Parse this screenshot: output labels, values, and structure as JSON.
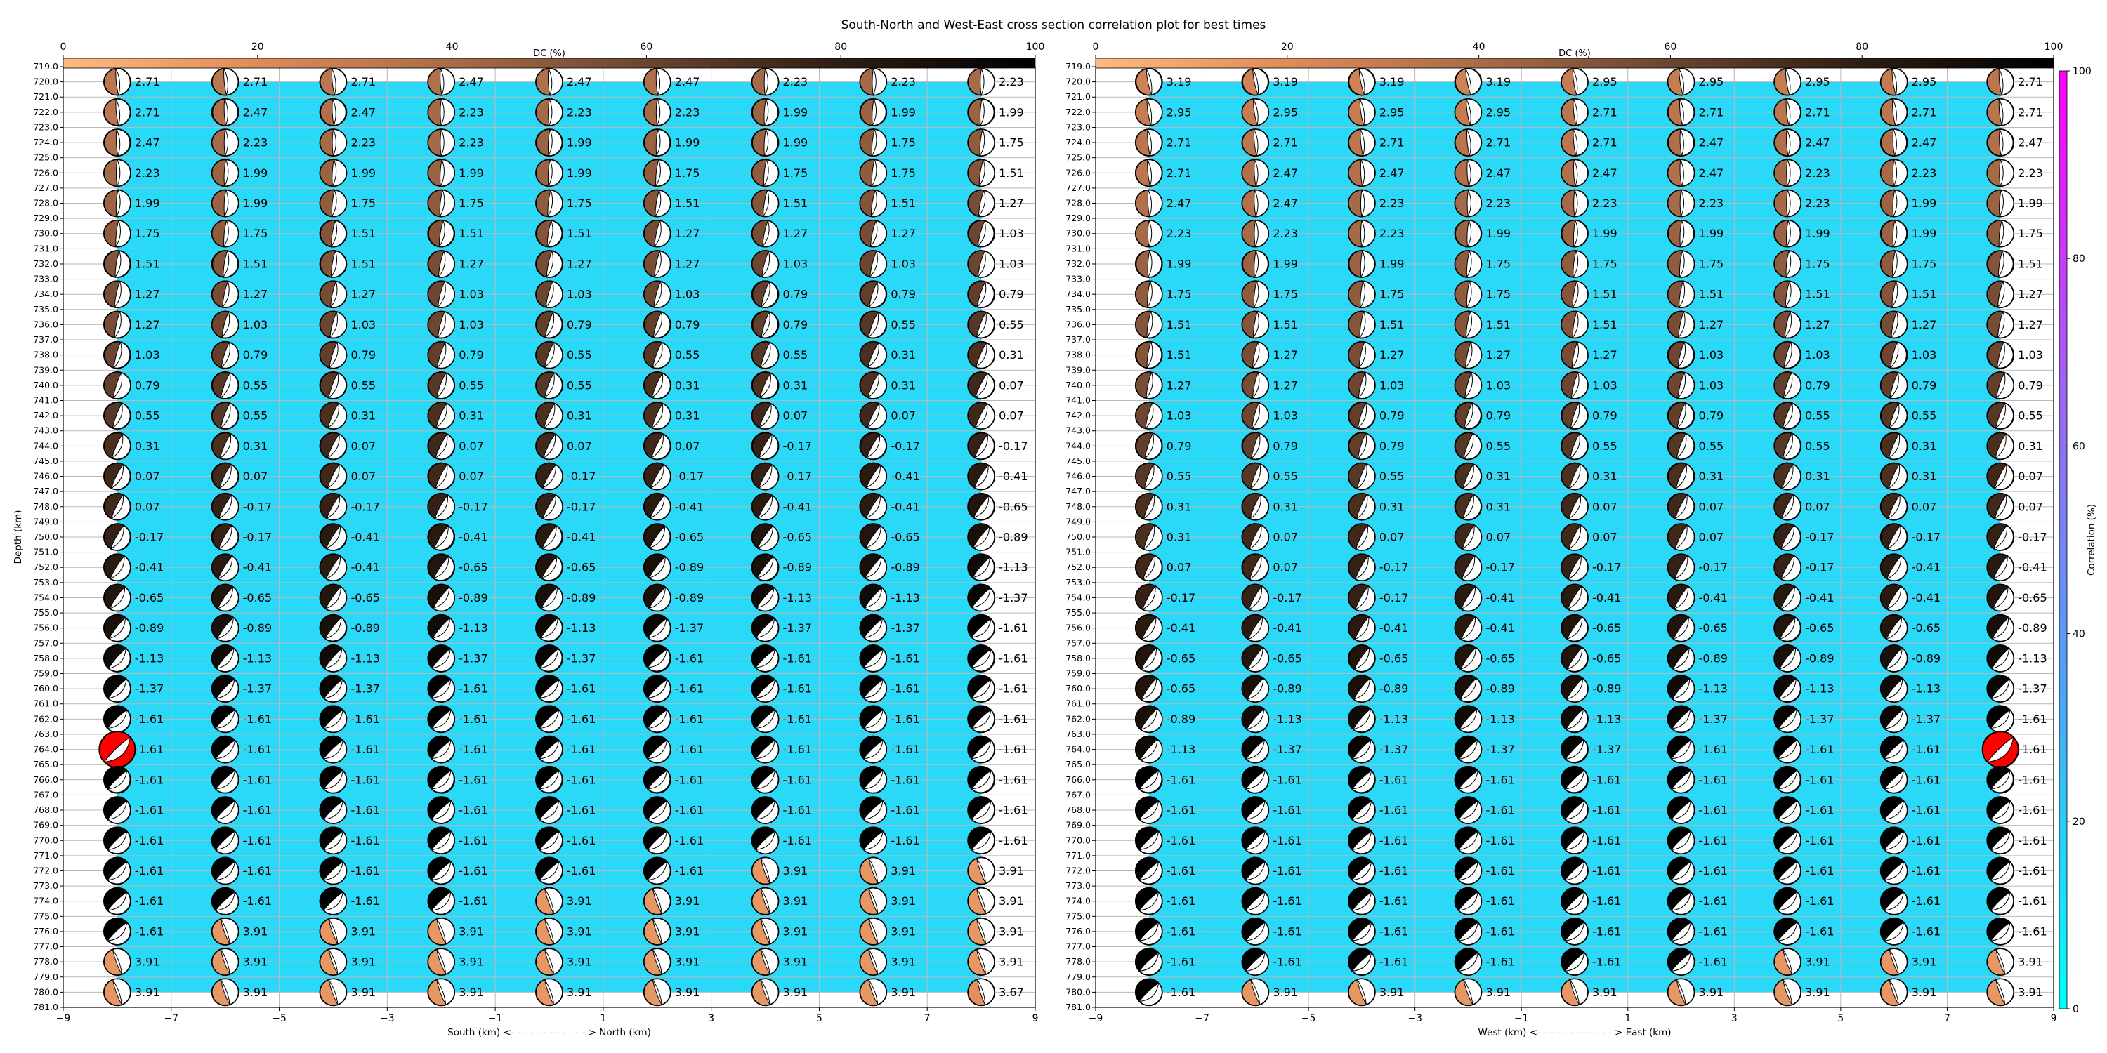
{
  "title": "South-North and West-East cross section correlation plot for best times",
  "colors": {
    "background_fill": "#2ad8f8",
    "grid": "#b9b9b9",
    "best_fit": "#ff0000",
    "dc_colormap": [
      "#fdba82",
      "#e08b5a",
      "#a86c48",
      "#6b4530",
      "#2e1d12",
      "#000000"
    ],
    "corr_colormap": [
      "#00ffff",
      "#4ba6f5",
      "#9f63f2",
      "#ff00ff"
    ]
  },
  "dc_colorbar": {
    "label": "DC (%)",
    "ticks": [
      0,
      20,
      40,
      60,
      80,
      100
    ]
  },
  "corr_colorbar": {
    "label": "Correlation (%)",
    "ticks": [
      0,
      20,
      40,
      60,
      80,
      100
    ]
  },
  "chart_data": [
    {
      "type": "scatter",
      "panel": "left",
      "xlabel": "South (km) <- - - - - - - - - - - - > North (km)",
      "ylabel": "Depth (km)",
      "xlim": [
        -9,
        9
      ],
      "ylim": [
        719,
        781
      ],
      "y_inverted": true,
      "xticks": [
        "−9",
        "−7",
        "−5",
        "−3",
        "−1",
        "1",
        "3",
        "5",
        "7",
        "9"
      ],
      "yticks": [
        719,
        720,
        721,
        722,
        723,
        724,
        725,
        726,
        727,
        728,
        729,
        730,
        731,
        732,
        733,
        734,
        735,
        736,
        737,
        738,
        739,
        740,
        741,
        742,
        743,
        744,
        745,
        746,
        747,
        748,
        749,
        750,
        751,
        752,
        753,
        754,
        755,
        756,
        757,
        758,
        759,
        760,
        761,
        762,
        763,
        764,
        765,
        766,
        767,
        768,
        769,
        770,
        771,
        772,
        773,
        774,
        775,
        776,
        777,
        778,
        779,
        780,
        781
      ],
      "x": [
        -8,
        -6,
        -4,
        -2,
        0,
        2,
        4,
        6,
        8
      ],
      "depths": [
        720,
        722,
        724,
        726,
        728,
        730,
        732,
        734,
        736,
        738,
        740,
        742,
        744,
        746,
        748,
        750,
        752,
        754,
        756,
        758,
        760,
        762,
        764,
        766,
        768,
        770,
        772,
        774,
        776,
        778,
        780
      ],
      "best_fit": {
        "x": -8,
        "depth": 764
      },
      "values": [
        [
          "2.71",
          "2.71",
          "2.71",
          "2.47",
          "2.47",
          "2.47",
          "2.23",
          "2.23",
          "2.23"
        ],
        [
          "2.71",
          "2.47",
          "2.47",
          "2.23",
          "2.23",
          "2.23",
          "1.99",
          "1.99",
          "1.99"
        ],
        [
          "2.47",
          "2.23",
          "2.23",
          "2.23",
          "1.99",
          "1.99",
          "1.99",
          "1.75",
          "1.75"
        ],
        [
          "2.23",
          "1.99",
          "1.99",
          "1.99",
          "1.99",
          "1.75",
          "1.75",
          "1.75",
          "1.51"
        ],
        [
          "1.99",
          "1.99",
          "1.75",
          "1.75",
          "1.75",
          "1.51",
          "1.51",
          "1.51",
          "1.27"
        ],
        [
          "1.75",
          "1.75",
          "1.51",
          "1.51",
          "1.51",
          "1.27",
          "1.27",
          "1.27",
          "1.03"
        ],
        [
          "1.51",
          "1.51",
          "1.51",
          "1.27",
          "1.27",
          "1.27",
          "1.03",
          "1.03",
          "1.03"
        ],
        [
          "1.27",
          "1.27",
          "1.27",
          "1.03",
          "1.03",
          "1.03",
          "0.79",
          "0.79",
          "0.79"
        ],
        [
          "1.27",
          "1.03",
          "1.03",
          "1.03",
          "0.79",
          "0.79",
          "0.79",
          "0.55",
          "0.55"
        ],
        [
          "1.03",
          "0.79",
          "0.79",
          "0.79",
          "0.55",
          "0.55",
          "0.55",
          "0.31",
          "0.31"
        ],
        [
          "0.79",
          "0.55",
          "0.55",
          "0.55",
          "0.55",
          "0.31",
          "0.31",
          "0.31",
          "0.07"
        ],
        [
          "0.55",
          "0.55",
          "0.31",
          "0.31",
          "0.31",
          "0.31",
          "0.07",
          "0.07",
          "0.07"
        ],
        [
          "0.31",
          "0.31",
          "0.07",
          "0.07",
          "0.07",
          "0.07",
          "-0.17",
          "-0.17",
          "-0.17"
        ],
        [
          "0.07",
          "0.07",
          "0.07",
          "0.07",
          "-0.17",
          "-0.17",
          "-0.17",
          "-0.41",
          "-0.41"
        ],
        [
          "0.07",
          "-0.17",
          "-0.17",
          "-0.17",
          "-0.17",
          "-0.41",
          "-0.41",
          "-0.41",
          "-0.65"
        ],
        [
          "-0.17",
          "-0.17",
          "-0.41",
          "-0.41",
          "-0.41",
          "-0.65",
          "-0.65",
          "-0.65",
          "-0.89"
        ],
        [
          "-0.41",
          "-0.41",
          "-0.41",
          "-0.65",
          "-0.65",
          "-0.89",
          "-0.89",
          "-0.89",
          "-1.13"
        ],
        [
          "-0.65",
          "-0.65",
          "-0.65",
          "-0.89",
          "-0.89",
          "-0.89",
          "-1.13",
          "-1.13",
          "-1.37"
        ],
        [
          "-0.89",
          "-0.89",
          "-0.89",
          "-1.13",
          "-1.13",
          "-1.37",
          "-1.37",
          "-1.37",
          "-1.61"
        ],
        [
          "-1.13",
          "-1.13",
          "-1.13",
          "-1.37",
          "-1.37",
          "-1.61",
          "-1.61",
          "-1.61",
          "-1.61"
        ],
        [
          "-1.37",
          "-1.37",
          "-1.37",
          "-1.61",
          "-1.61",
          "-1.61",
          "-1.61",
          "-1.61",
          "-1.61"
        ],
        [
          "-1.61",
          "-1.61",
          "-1.61",
          "-1.61",
          "-1.61",
          "-1.61",
          "-1.61",
          "-1.61",
          "-1.61"
        ],
        [
          "-1.61",
          "-1.61",
          "-1.61",
          "-1.61",
          "-1.61",
          "-1.61",
          "-1.61",
          "-1.61",
          "-1.61"
        ],
        [
          "-1.61",
          "-1.61",
          "-1.61",
          "-1.61",
          "-1.61",
          "-1.61",
          "-1.61",
          "-1.61",
          "-1.61"
        ],
        [
          "-1.61",
          "-1.61",
          "-1.61",
          "-1.61",
          "-1.61",
          "-1.61",
          "-1.61",
          "-1.61",
          "-1.61"
        ],
        [
          "-1.61",
          "-1.61",
          "-1.61",
          "-1.61",
          "-1.61",
          "-1.61",
          "-1.61",
          "-1.61",
          "-1.61"
        ],
        [
          "-1.61",
          "-1.61",
          "-1.61",
          "-1.61",
          "-1.61",
          "-1.61",
          "3.91",
          "3.91",
          "3.91"
        ],
        [
          "-1.61",
          "-1.61",
          "-1.61",
          "-1.61",
          "3.91",
          "3.91",
          "3.91",
          "3.91",
          "3.91"
        ],
        [
          "-1.61",
          "3.91",
          "3.91",
          "3.91",
          "3.91",
          "3.91",
          "3.91",
          "3.91",
          "3.91"
        ],
        [
          "3.91",
          "3.91",
          "3.91",
          "3.91",
          "3.91",
          "3.91",
          "3.91",
          "3.91",
          "3.91"
        ],
        [
          "3.91",
          "3.91",
          "3.91",
          "3.91",
          "3.91",
          "3.91",
          "3.91",
          "3.91",
          "3.67"
        ]
      ]
    },
    {
      "type": "scatter",
      "panel": "right",
      "xlabel": "West (km) <- - - - - - - - - - - - > East (km)",
      "ylabel": "",
      "xlim": [
        -9,
        9
      ],
      "ylim": [
        719,
        781
      ],
      "y_inverted": true,
      "xticks": [
        "−9",
        "−7",
        "−5",
        "−3",
        "−1",
        "1",
        "3",
        "5",
        "7",
        "9"
      ],
      "yticks": [
        719,
        720,
        721,
        722,
        723,
        724,
        725,
        726,
        727,
        728,
        729,
        730,
        731,
        732,
        733,
        734,
        735,
        736,
        737,
        738,
        739,
        740,
        741,
        742,
        743,
        744,
        745,
        746,
        747,
        748,
        749,
        750,
        751,
        752,
        753,
        754,
        755,
        756,
        757,
        758,
        759,
        760,
        761,
        762,
        763,
        764,
        765,
        766,
        767,
        768,
        769,
        770,
        771,
        772,
        773,
        774,
        775,
        776,
        777,
        778,
        779,
        780,
        781
      ],
      "x": [
        -8,
        -6,
        -4,
        -2,
        0,
        2,
        4,
        6,
        8
      ],
      "depths": [
        720,
        722,
        724,
        726,
        728,
        730,
        732,
        734,
        736,
        738,
        740,
        742,
        744,
        746,
        748,
        750,
        752,
        754,
        756,
        758,
        760,
        762,
        764,
        766,
        768,
        770,
        772,
        774,
        776,
        778,
        780
      ],
      "best_fit": {
        "x": 8,
        "depth": 764
      },
      "values": [
        [
          "3.19",
          "3.19",
          "3.19",
          "3.19",
          "2.95",
          "2.95",
          "2.95",
          "2.95",
          "2.71"
        ],
        [
          "2.95",
          "2.95",
          "2.95",
          "2.95",
          "2.71",
          "2.71",
          "2.71",
          "2.71",
          "2.71"
        ],
        [
          "2.71",
          "2.71",
          "2.71",
          "2.71",
          "2.71",
          "2.47",
          "2.47",
          "2.47",
          "2.47"
        ],
        [
          "2.71",
          "2.47",
          "2.47",
          "2.47",
          "2.47",
          "2.47",
          "2.23",
          "2.23",
          "2.23"
        ],
        [
          "2.47",
          "2.47",
          "2.23",
          "2.23",
          "2.23",
          "2.23",
          "2.23",
          "1.99",
          "1.99"
        ],
        [
          "2.23",
          "2.23",
          "2.23",
          "1.99",
          "1.99",
          "1.99",
          "1.99",
          "1.99",
          "1.75"
        ],
        [
          "1.99",
          "1.99",
          "1.99",
          "1.75",
          "1.75",
          "1.75",
          "1.75",
          "1.75",
          "1.51"
        ],
        [
          "1.75",
          "1.75",
          "1.75",
          "1.75",
          "1.51",
          "1.51",
          "1.51",
          "1.51",
          "1.27"
        ],
        [
          "1.51",
          "1.51",
          "1.51",
          "1.51",
          "1.51",
          "1.27",
          "1.27",
          "1.27",
          "1.27"
        ],
        [
          "1.51",
          "1.27",
          "1.27",
          "1.27",
          "1.27",
          "1.03",
          "1.03",
          "1.03",
          "1.03"
        ],
        [
          "1.27",
          "1.27",
          "1.03",
          "1.03",
          "1.03",
          "1.03",
          "0.79",
          "0.79",
          "0.79"
        ],
        [
          "1.03",
          "1.03",
          "0.79",
          "0.79",
          "0.79",
          "0.79",
          "0.55",
          "0.55",
          "0.55"
        ],
        [
          "0.79",
          "0.79",
          "0.79",
          "0.55",
          "0.55",
          "0.55",
          "0.55",
          "0.31",
          "0.31"
        ],
        [
          "0.55",
          "0.55",
          "0.55",
          "0.31",
          "0.31",
          "0.31",
          "0.31",
          "0.31",
          "0.07"
        ],
        [
          "0.31",
          "0.31",
          "0.31",
          "0.31",
          "0.07",
          "0.07",
          "0.07",
          "0.07",
          "0.07"
        ],
        [
          "0.31",
          "0.07",
          "0.07",
          "0.07",
          "0.07",
          "0.07",
          "-0.17",
          "-0.17",
          "-0.17"
        ],
        [
          "0.07",
          "0.07",
          "-0.17",
          "-0.17",
          "-0.17",
          "-0.17",
          "-0.17",
          "-0.41",
          "-0.41"
        ],
        [
          "-0.17",
          "-0.17",
          "-0.17",
          "-0.41",
          "-0.41",
          "-0.41",
          "-0.41",
          "-0.41",
          "-0.65"
        ],
        [
          "-0.41",
          "-0.41",
          "-0.41",
          "-0.41",
          "-0.65",
          "-0.65",
          "-0.65",
          "-0.65",
          "-0.89"
        ],
        [
          "-0.65",
          "-0.65",
          "-0.65",
          "-0.65",
          "-0.65",
          "-0.89",
          "-0.89",
          "-0.89",
          "-1.13"
        ],
        [
          "-0.65",
          "-0.89",
          "-0.89",
          "-0.89",
          "-0.89",
          "-1.13",
          "-1.13",
          "-1.13",
          "-1.37"
        ],
        [
          "-0.89",
          "-1.13",
          "-1.13",
          "-1.13",
          "-1.13",
          "-1.37",
          "-1.37",
          "-1.37",
          "-1.61"
        ],
        [
          "-1.13",
          "-1.37",
          "-1.37",
          "-1.37",
          "-1.37",
          "-1.61",
          "-1.61",
          "-1.61",
          "-1.61"
        ],
        [
          "-1.61",
          "-1.61",
          "-1.61",
          "-1.61",
          "-1.61",
          "-1.61",
          "-1.61",
          "-1.61",
          "-1.61"
        ],
        [
          "-1.61",
          "-1.61",
          "-1.61",
          "-1.61",
          "-1.61",
          "-1.61",
          "-1.61",
          "-1.61",
          "-1.61"
        ],
        [
          "-1.61",
          "-1.61",
          "-1.61",
          "-1.61",
          "-1.61",
          "-1.61",
          "-1.61",
          "-1.61",
          "-1.61"
        ],
        [
          "-1.61",
          "-1.61",
          "-1.61",
          "-1.61",
          "-1.61",
          "-1.61",
          "-1.61",
          "-1.61",
          "-1.61"
        ],
        [
          "-1.61",
          "-1.61",
          "-1.61",
          "-1.61",
          "-1.61",
          "-1.61",
          "-1.61",
          "-1.61",
          "-1.61"
        ],
        [
          "-1.61",
          "-1.61",
          "-1.61",
          "-1.61",
          "-1.61",
          "-1.61",
          "-1.61",
          "-1.61",
          "-1.61"
        ],
        [
          "-1.61",
          "-1.61",
          "-1.61",
          "-1.61",
          "-1.61",
          "-1.61",
          "3.91",
          "3.91",
          "3.91"
        ],
        [
          "-1.61",
          "3.91",
          "3.91",
          "3.91",
          "3.91",
          "3.91",
          "3.91",
          "3.91",
          "3.91"
        ]
      ]
    }
  ]
}
